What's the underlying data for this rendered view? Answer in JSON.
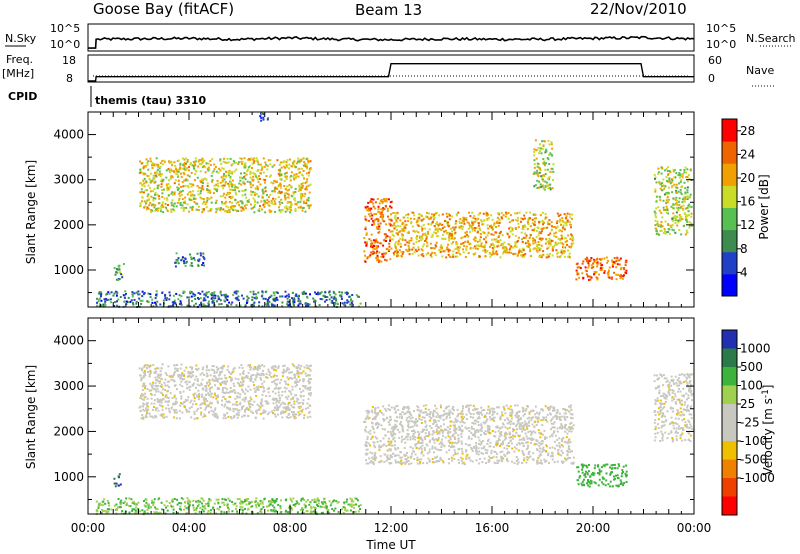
{
  "header": {
    "station": "Goose Bay (fitACF)",
    "beam": "Beam 13",
    "date": "22/Nov/2010"
  },
  "status_panels": {
    "left_labels": {
      "nsky": "N.Sky",
      "freq": "Freq.",
      "freq_unit": "[MHz]",
      "cpid": "CPID"
    },
    "right_labels": {
      "nsearch": "N.Search",
      "nave": "Nave"
    },
    "noise_ticks": [
      "10^5",
      "10^0"
    ],
    "noise_ticks_right": [
      "10^5",
      "10^0"
    ],
    "freq_ticks": [
      "18",
      "8"
    ],
    "nave_ticks": [
      "60",
      "0"
    ],
    "cpid_text": "themis (tau) 3310"
  },
  "colors": {
    "power_scale": [
      "#0000ff",
      "#2040c8",
      "#3c8c50",
      "#58c050",
      "#c8dc28",
      "#f0a000",
      "#f06400",
      "#ff0000"
    ],
    "velocity_scale": [
      "#2030b0",
      "#2a7a4a",
      "#3cb43c",
      "#a0d050",
      "#c8c8c0",
      "#c8c8c0",
      "#f0c000",
      "#f08000",
      "#f04000",
      "#ff0000"
    ]
  },
  "chart_data": [
    {
      "type": "heatmap",
      "title": "Power",
      "xlabel": "",
      "ylabel": "Slant Range [km]",
      "xlim": [
        "00:00",
        "24:00"
      ],
      "ylim": [
        180,
        4500
      ],
      "x_ticks": [
        "00:00",
        "04:00",
        "08:00",
        "12:00",
        "16:00",
        "20:00",
        "00:00"
      ],
      "y_ticks": [
        1000,
        2000,
        3000,
        4000
      ],
      "colorbar": {
        "label": "Power [dB]",
        "ticks": [
          4,
          8,
          12,
          16,
          20,
          24,
          28
        ],
        "range": [
          0,
          30
        ]
      },
      "echo_regions": [
        {
          "t_start": 0.3,
          "t_end": 10.8,
          "range_start": 200,
          "range_end": 550,
          "level": 8
        },
        {
          "t_start": 2.0,
          "t_end": 8.8,
          "range_start": 2300,
          "range_end": 3500,
          "level": 18
        },
        {
          "t_start": 6.7,
          "t_end": 7.1,
          "range_start": 4300,
          "range_end": 4500,
          "level": 8
        },
        {
          "t_start": 3.4,
          "t_end": 4.6,
          "range_start": 1100,
          "range_end": 1400,
          "level": 8
        },
        {
          "t_start": 1.0,
          "t_end": 1.4,
          "range_start": 800,
          "range_end": 1200,
          "level": 12
        },
        {
          "t_start": 10.9,
          "t_end": 12.0,
          "range_start": 1200,
          "range_end": 2600,
          "level": 24
        },
        {
          "t_start": 12.0,
          "t_end": 19.2,
          "range_start": 1300,
          "range_end": 2300,
          "level": 20
        },
        {
          "t_start": 19.3,
          "t_end": 21.3,
          "range_start": 800,
          "range_end": 1300,
          "level": 24
        },
        {
          "t_start": 17.6,
          "t_end": 18.4,
          "range_start": 2800,
          "range_end": 3900,
          "level": 16
        },
        {
          "t_start": 22.4,
          "t_end": 23.9,
          "range_start": 1800,
          "range_end": 3300,
          "level": 16
        }
      ]
    },
    {
      "type": "heatmap",
      "title": "Velocity",
      "xlabel": "Time UT",
      "ylabel": "Slant Range [km]",
      "xlim": [
        "00:00",
        "24:00"
      ],
      "ylim": [
        180,
        4500
      ],
      "x_ticks": [
        "00:00",
        "04:00",
        "08:00",
        "12:00",
        "16:00",
        "20:00",
        "00:00"
      ],
      "y_ticks": [
        1000,
        2000,
        3000,
        4000
      ],
      "colorbar": {
        "label": "Velocity [m s-1]",
        "label_main": "Velocity [m s",
        "label_sup": "-1",
        "label_end": "]",
        "ticks": [
          "1000",
          "500",
          "100",
          "25",
          "-25",
          "-100",
          "-500",
          "-1000"
        ],
        "range": [
          -1000,
          1000
        ]
      },
      "echo_regions": [
        {
          "t_start": 0.3,
          "t_end": 10.8,
          "range_start": 200,
          "range_end": 550,
          "velocity": 100
        },
        {
          "t_start": 2.0,
          "t_end": 8.8,
          "range_start": 2300,
          "range_end": 3500,
          "velocity": 0
        },
        {
          "t_start": 1.0,
          "t_end": 1.3,
          "range_start": 800,
          "range_end": 1100,
          "velocity": 1000
        },
        {
          "t_start": 10.9,
          "t_end": 19.2,
          "range_start": 1300,
          "range_end": 2600,
          "velocity": 0
        },
        {
          "t_start": 19.3,
          "t_end": 21.3,
          "range_start": 800,
          "range_end": 1300,
          "velocity": 150
        },
        {
          "t_start": 22.4,
          "t_end": 23.9,
          "range_start": 1800,
          "range_end": 3300,
          "velocity": 0
        }
      ]
    },
    {
      "type": "line",
      "title": "N.Sky",
      "description_series": "noise",
      "x": [
        0.0,
        0.3,
        0.32,
        2,
        4,
        6,
        8,
        10,
        12,
        14,
        16,
        18,
        20,
        22,
        24
      ],
      "values": [
        0.2,
        0.2,
        2.2,
        2.3,
        2.4,
        2.2,
        2.5,
        2.2,
        2.1,
        2.3,
        2.2,
        2.2,
        2.4,
        2.6,
        2.3
      ],
      "ylim": [
        0,
        5
      ]
    },
    {
      "type": "line",
      "title": "Freq.",
      "x": [
        0.0,
        0.3,
        0.32,
        11.9,
        12.0,
        21.9,
        22.0,
        24
      ],
      "values": [
        8,
        8,
        9.8,
        9.8,
        15.2,
        15.2,
        9.8,
        9.8
      ],
      "ylim": [
        8,
        18
      ]
    }
  ]
}
